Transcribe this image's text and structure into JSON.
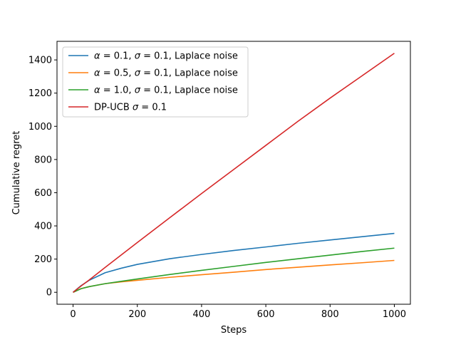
{
  "chart_data": {
    "type": "line",
    "title": "",
    "xlabel": "Steps",
    "ylabel": "Cumulative regret",
    "xlim": [
      -50,
      1050
    ],
    "ylim": [
      -72,
      1512
    ],
    "xticks": [
      0,
      200,
      400,
      600,
      800,
      1000
    ],
    "yticks": [
      0,
      200,
      400,
      600,
      800,
      1000,
      1200,
      1400
    ],
    "grid": false,
    "legend_position": "top-left",
    "series": [
      {
        "name_parts": [
          {
            "text": "α",
            "italic": true
          },
          {
            "text": " = 0.1, ",
            "italic": false
          },
          {
            "text": "σ",
            "italic": true
          },
          {
            "text": " = 0.1, Laplace noise",
            "italic": false
          }
        ],
        "color": "#1f77b4",
        "x": [
          0,
          25,
          50,
          100,
          150,
          200,
          300,
          400,
          500,
          600,
          700,
          800,
          900,
          1000
        ],
        "y": [
          0,
          40,
          72,
          118,
          145,
          168,
          202,
          228,
          252,
          273,
          295,
          315,
          335,
          355
        ]
      },
      {
        "name_parts": [
          {
            "text": "α",
            "italic": true
          },
          {
            "text": " = 0.5, ",
            "italic": false
          },
          {
            "text": "σ",
            "italic": true
          },
          {
            "text": " = 0.1, Laplace noise",
            "italic": false
          }
        ],
        "color": "#ff7f0e",
        "x": [
          0,
          25,
          50,
          100,
          150,
          200,
          300,
          400,
          500,
          600,
          700,
          800,
          900,
          1000
        ],
        "y": [
          0,
          22,
          34,
          52,
          63,
          72,
          90,
          106,
          121,
          137,
          151,
          165,
          178,
          192
        ]
      },
      {
        "name_parts": [
          {
            "text": "α",
            "italic": true
          },
          {
            "text": " = 1.0, ",
            "italic": false
          },
          {
            "text": "σ",
            "italic": true
          },
          {
            "text": " = 0.1, Laplace noise",
            "italic": false
          }
        ],
        "color": "#2ca02c",
        "x": [
          0,
          25,
          50,
          100,
          150,
          200,
          300,
          400,
          500,
          600,
          700,
          800,
          900,
          1000
        ],
        "y": [
          0,
          22,
          34,
          52,
          66,
          80,
          107,
          132,
          156,
          180,
          202,
          224,
          246,
          266
        ]
      },
      {
        "name_parts": [
          {
            "text": "DP-UCB ",
            "italic": false
          },
          {
            "text": "σ",
            "italic": true
          },
          {
            "text": " = 0.1",
            "italic": false
          }
        ],
        "color": "#d62728",
        "x": [
          0,
          25,
          50,
          100,
          200,
          300,
          400,
          500,
          600,
          700,
          800,
          900,
          1000
        ],
        "y": [
          0,
          38,
          74,
          150,
          300,
          448,
          595,
          740,
          885,
          1030,
          1170,
          1305,
          1440
        ]
      }
    ]
  }
}
